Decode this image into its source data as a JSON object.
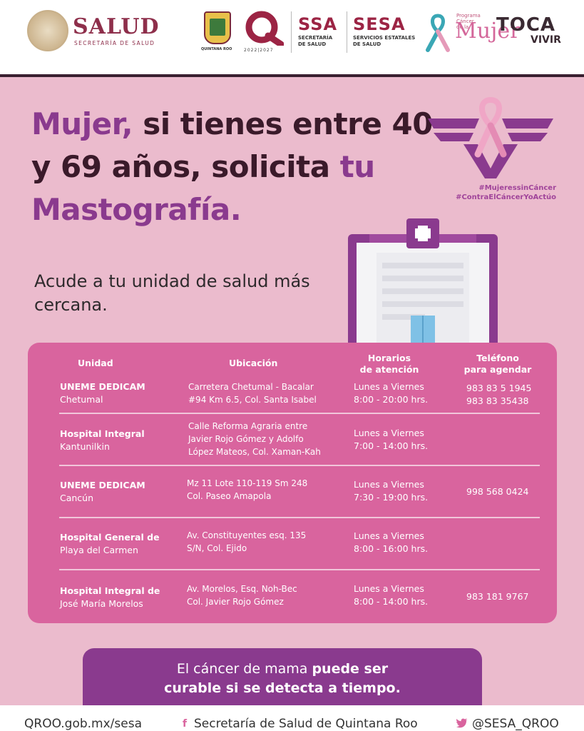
{
  "header": {
    "salud_word": "SALUD",
    "salud_sub": "SECRETARÍA DE SALUD",
    "qroo_label": "QUINTANA ROO",
    "q_years": "2022|2027",
    "ssa_word": "SSA",
    "ssa_sub": "SECRETARÍA\nDE SALUD",
    "sesa_word": "SESA",
    "sesa_sub": "SERVICIOS ESTATALES\nDE SALUD",
    "programa_small": "Programa\nCáncer\nde la",
    "programa_big": "Mujer",
    "toca_word": "TOCA",
    "toca_vivir": "VIVIR"
  },
  "headline": {
    "part1": "Mujer,",
    "part2": " si tienes entre 40 y 69 años, solicita ",
    "part3": "tu Mastografía."
  },
  "hashtags": [
    "#MujeressinCáncer",
    "#ContraElCáncerYoActúo"
  ],
  "intro": "Acude a tu unidad de salud más cercana.",
  "table": {
    "headers": {
      "unidad": "Unidad",
      "ubicacion": "Ubicación",
      "horarios_1": "Horarios",
      "horarios_2": "de atención",
      "telefono_1": "Teléfono",
      "telefono_2": "para agendar"
    },
    "rows": [
      {
        "name": "UNEME DEDICAM",
        "city": "Chetumal",
        "loc": [
          "Carretera Chetumal - Bacalar",
          "#94 Km 6.5, Col. Santa Isabel"
        ],
        "days": "Lunes a Viernes",
        "hours": "8:00 - 20:00 hrs.",
        "phones": [
          "983 83 5 1945",
          "983 83 35438"
        ]
      },
      {
        "name": "Hospital Integral",
        "city": "Kantunilkin",
        "loc": [
          "Calle Reforma Agraria entre",
          "Javier Rojo Gómez y Adolfo",
          "López Mateos, Col. Xaman-Kah"
        ],
        "days": "Lunes a Viernes",
        "hours": "7:00 - 14:00 hrs.",
        "phones": []
      },
      {
        "name": "UNEME DEDICAM",
        "city": "Cancún",
        "loc": [
          "Mz 11 Lote 110-119 Sm 248",
          "Col. Paseo Amapola"
        ],
        "days": "Lunes a Viernes",
        "hours": "7:30 - 19:00 hrs.",
        "phones": [
          "998 568 0424"
        ]
      },
      {
        "name": "Hospital General de",
        "city": "Playa del Carmen",
        "loc": [
          "Av. Constituyentes esq. 135",
          "S/N, Col. Ejido"
        ],
        "days": "Lunes a Viernes",
        "hours": "8:00 - 16:00 hrs.",
        "phones": []
      },
      {
        "name": "Hospital Integral de",
        "city": "José María Morelos",
        "loc": [
          "Av. Morelos, Esq. Noh-Bec",
          "Col. Javier Rojo Gómez"
        ],
        "days": "Lunes a Viernes",
        "hours": "8:00 - 14:00 hrs.",
        "phones": [
          "983 181 9767"
        ]
      }
    ]
  },
  "banner": {
    "line1_normal": "El cáncer de mama ",
    "line1_bold": "puede ser",
    "line2_bold": "curable si se detecta a tiempo."
  },
  "footer": {
    "url": "QROO.gob.mx/sesa",
    "facebook_icon": "f",
    "facebook": "Secretaría de Salud de Quintana Roo",
    "twitter": "@SESA_QROO"
  },
  "colors": {
    "background_pink": "#ebbbcd",
    "table_pink": "#d9649e",
    "purple": "#8a3a8e",
    "dark_text": "#3a1a2a",
    "brand_red": "#9c2444"
  }
}
